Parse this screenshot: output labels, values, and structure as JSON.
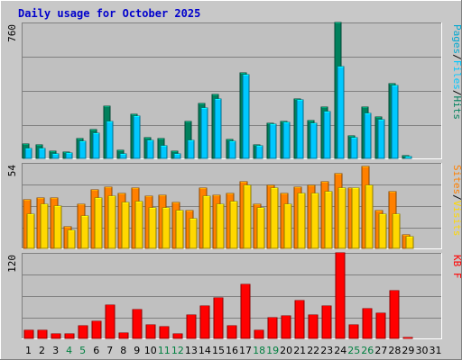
{
  "chart_data": {
    "type": "bar",
    "title": "Daily usage for October 2025",
    "categories": [
      "1",
      "2",
      "3",
      "4",
      "5",
      "6",
      "7",
      "8",
      "9",
      "10",
      "11",
      "12",
      "13",
      "14",
      "15",
      "16",
      "17",
      "18",
      "19",
      "20",
      "21",
      "22",
      "23",
      "24",
      "25",
      "26",
      "27",
      "28",
      "29",
      "30",
      "31"
    ],
    "weekend_days": [
      "4",
      "5",
      "11",
      "12",
      "18",
      "19",
      "25",
      "26"
    ],
    "panels": [
      {
        "id": "hits",
        "ymax_label": "760",
        "ylim": [
          0,
          760
        ],
        "side_labels": [
          "Pages",
          "/",
          "Files",
          "/",
          "Hits"
        ],
        "series": [
          {
            "name": "Hits",
            "values": [
              85,
              80,
              45,
              40,
              115,
              165,
              295,
              50,
              250,
              120,
              115,
              45,
              210,
              310,
              360,
              110,
              480,
              80,
              200,
              210,
              335,
              215,
              290,
              760,
              130,
              290,
              235,
              420,
              18,
              0,
              0
            ]
          },
          {
            "name": "Files",
            "values": [
              60,
              60,
              30,
              35,
              100,
              145,
              210,
              30,
              240,
              105,
              75,
              30,
              105,
              285,
              335,
              100,
              470,
              75,
              195,
              205,
              330,
              200,
              265,
              515,
              120,
              255,
              220,
              410,
              15,
              0,
              0
            ]
          },
          {
            "name": "Pages",
            "values": [
              0,
              0,
              0,
              0,
              0,
              0,
              0,
              0,
              0,
              0,
              0,
              0,
              0,
              0,
              0,
              0,
              0,
              0,
              0,
              0,
              0,
              0,
              0,
              0,
              0,
              0,
              0,
              0,
              0,
              0,
              0
            ]
          }
        ]
      },
      {
        "id": "visits",
        "ymax_label": "54",
        "ylim": [
          0,
          54
        ],
        "side_labels": [
          "Sites",
          "/",
          "Visits"
        ],
        "series": [
          {
            "name": "Visits",
            "values": [
              31,
              32,
              32,
              14,
              28,
              37,
              39,
              35,
              38,
              33,
              34,
              29,
              24,
              38,
              34,
              35,
              42,
              28,
              40,
              35,
              39,
              40,
              42,
              47,
              38,
              52,
              24,
              36,
              9,
              0,
              0
            ]
          },
          {
            "name": "Sites",
            "values": [
              22,
              28,
              27,
              12,
              21,
              32,
              33,
              29,
              30,
              26,
              26,
              24,
              19,
              33,
              28,
              30,
              40,
              26,
              38,
              28,
              35,
              35,
              36,
              38,
              38,
              40,
              22,
              22,
              8,
              0,
              0
            ]
          }
        ]
      },
      {
        "id": "kbytes",
        "ymax_label": "120",
        "ylim": [
          0,
          120
        ],
        "side_labels": [
          "KB",
          " ",
          "F"
        ],
        "series": [
          {
            "name": "KBytes",
            "values": [
              13,
              12,
              7,
              7,
              19,
              25,
              47,
              9,
              41,
              20,
              18,
              8,
              34,
              46,
              57,
              19,
              76,
              12,
              30,
              33,
              54,
              34,
              46,
              120,
              20,
              42,
              36,
              67,
              3,
              0,
              0
            ]
          }
        ]
      }
    ],
    "colors": {
      "title": "#0000cc",
      "hits": "#00805c",
      "files": "#00c8ff",
      "pages": "#00a8d0",
      "visits": "#ff8000",
      "sites": "#ffd800",
      "kbytes": "#ff0000",
      "weekend_label": "#008040",
      "weekday_label": "#000000",
      "plot_bg": "#c0c0c0",
      "frame_bg": "#c8c8c8",
      "grid": "#808080"
    }
  }
}
